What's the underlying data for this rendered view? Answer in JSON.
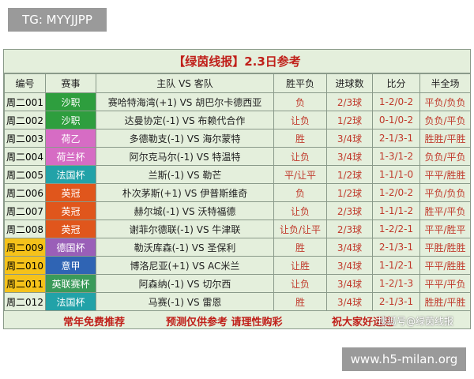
{
  "tag_label": "TG: MYYJJPP",
  "site_label": "www.h5-milan.org",
  "watermark": "搜狐号@绿茵线报",
  "table": {
    "title": "【绿茵线报】2.3日参考",
    "header": [
      "编号",
      "赛事",
      "主队 VS 客队",
      "胜平负",
      "进球数",
      "比分",
      "半全场"
    ],
    "rows": [
      [
        "周二001",
        "沙职",
        "赛哈特海湾(+1) VS 胡巴尔卡德西亚",
        "负",
        "2/3球",
        "1-2/0-2",
        "平负/负负"
      ],
      [
        "周二002",
        "沙职",
        "达曼协定(-1) VS 布赖代合作",
        "让负",
        "1/2球",
        "0-1/0-2",
        "负负/平负"
      ],
      [
        "周二003",
        "荷乙",
        "多德勒支(-1) VS 海尔蒙特",
        "胜",
        "3/4球",
        "2-1/3-1",
        "胜胜/平胜"
      ],
      [
        "周二004",
        "荷兰杯",
        "阿尔克马尔(-1) VS 特温特",
        "让负",
        "3/4球",
        "1-3/1-2",
        "负负/平负"
      ],
      [
        "周二005",
        "法国杯",
        "兰斯(-1) VS 勒芒",
        "平/让平",
        "1/2球",
        "1-1/1-0",
        "平平/胜胜"
      ],
      [
        "周二006",
        "英冠",
        "朴次茅斯(+1) VS 伊普斯维奇",
        "负",
        "1/2球",
        "1-2/0-2",
        "平负/负负"
      ],
      [
        "周二007",
        "英冠",
        "赫尔城(-1) VS 沃特福德",
        "让负",
        "2/3球",
        "1-1/1-2",
        "胜平/平负"
      ],
      [
        "周二008",
        "英冠",
        "谢菲尔德联(-1) VS 牛津联",
        "让负/让平",
        "2/3球",
        "1-2/2-1",
        "平平/胜平"
      ],
      [
        "周二009",
        "德国杯",
        "勒沃库森(-1) VS 圣保利",
        "胜",
        "3/4球",
        "2-1/3-1",
        "平胜/胜胜"
      ],
      [
        "周二010",
        "意甲",
        "博洛尼亚(+1) VS AC米兰",
        "让胜",
        "3/4球",
        "1-1/2-1",
        "平平/胜胜"
      ],
      [
        "周二011",
        "英联赛杯",
        "阿森纳(-1) VS 切尔西",
        "让负",
        "3/4球",
        "1-2/1-3",
        "平平/平负"
      ],
      [
        "周二012",
        "法国杯",
        "马赛(-1) VS 雷恩",
        "胜",
        "3/4球",
        "2-1/3-1",
        "胜胜/平胜"
      ]
    ],
    "footer": [
      "常年免费推荐",
      "预测仅供参考 请理性购彩",
      "祝大家好运连"
    ]
  }
}
